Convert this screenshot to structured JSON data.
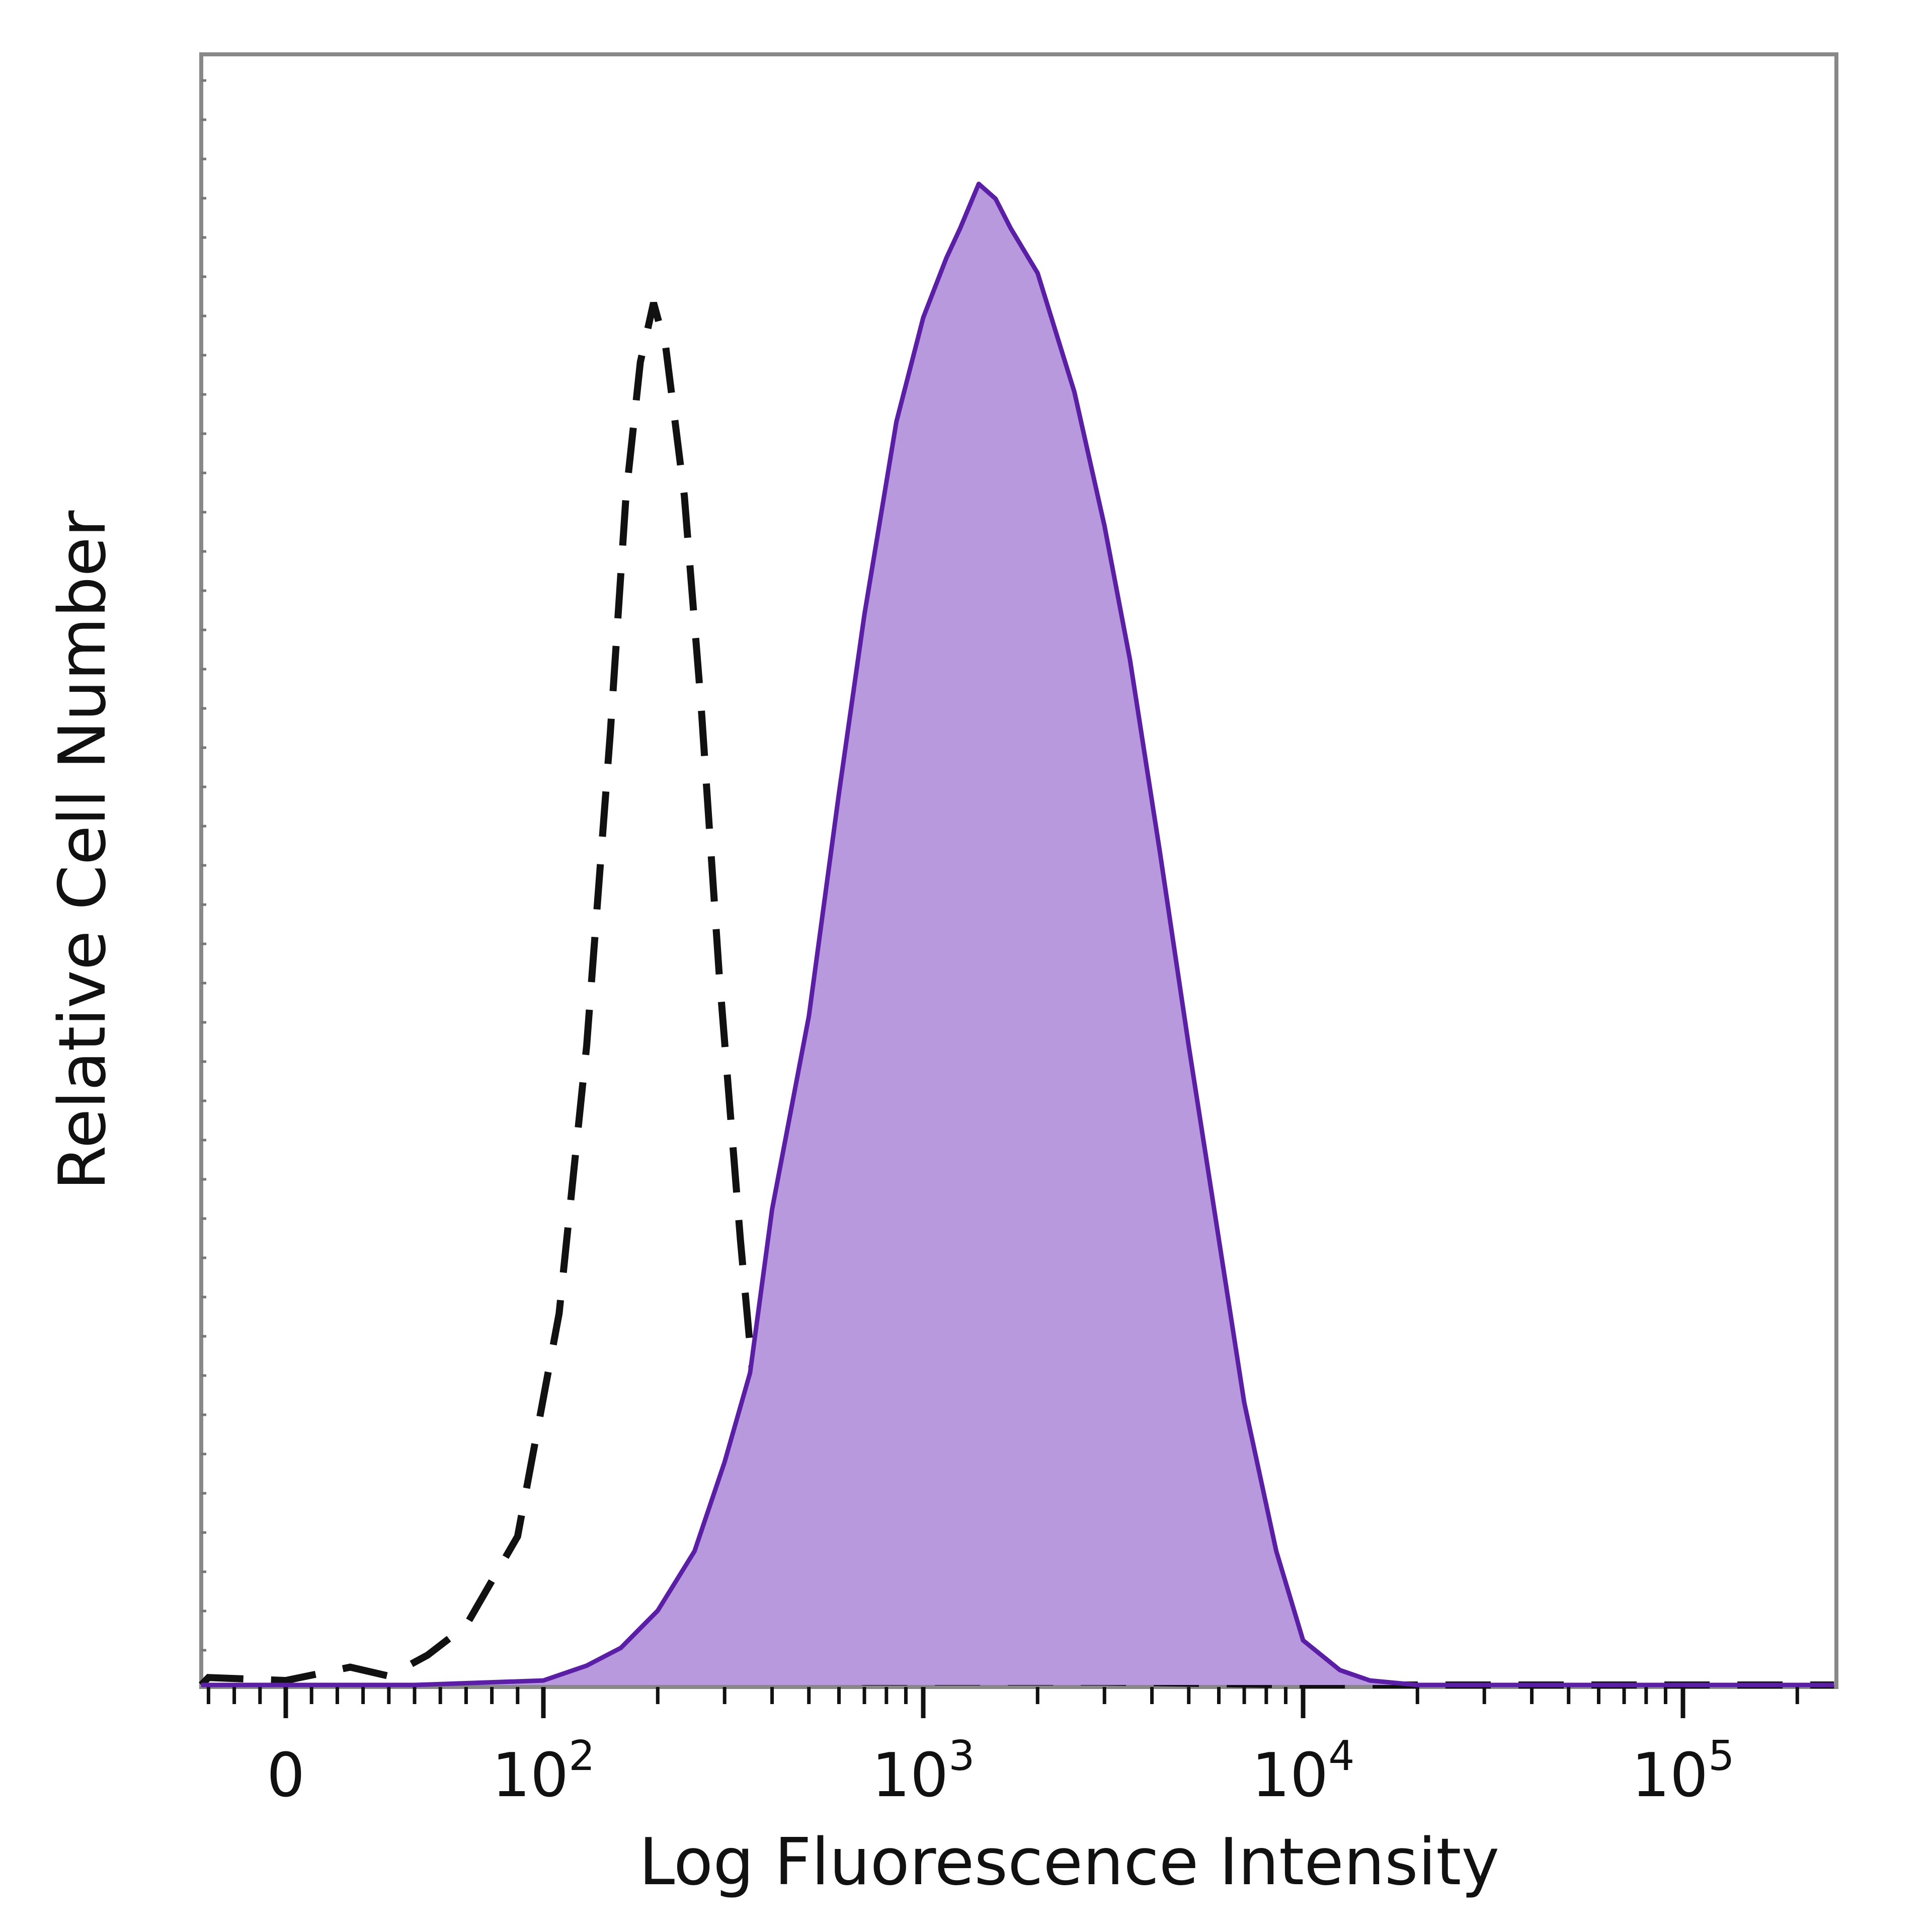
{
  "chart_data": {
    "type": "area",
    "xlabel": "Log Fluorescence Intensity",
    "ylabel": "Relative Cell Number",
    "x_scale": "biexponential",
    "x_ticks": [
      {
        "value": 0,
        "base": "0",
        "exp": ""
      },
      {
        "value": 100,
        "base": "10",
        "exp": "2"
      },
      {
        "value": 1000,
        "base": "10",
        "exp": "3"
      },
      {
        "value": 10000,
        "base": "10",
        "exp": "4"
      },
      {
        "value": 100000,
        "base": "10",
        "exp": "5"
      }
    ],
    "xlim": [
      -60,
      250000
    ],
    "ylim": [
      0,
      100
    ],
    "grid": false,
    "legend": "none",
    "series": [
      {
        "style": "dashed",
        "color": "#111111",
        "points": [
          [
            -60,
            0
          ],
          [
            -30,
            0.5
          ],
          [
            0,
            0.3
          ],
          [
            25,
            1.2
          ],
          [
            40,
            0.6
          ],
          [
            55,
            2
          ],
          [
            70,
            4
          ],
          [
            90,
            10
          ],
          [
            110,
            25
          ],
          [
            130,
            43
          ],
          [
            150,
            64
          ],
          [
            165,
            80
          ],
          [
            180,
            89
          ],
          [
            195,
            93
          ],
          [
            210,
            90
          ],
          [
            235,
            80
          ],
          [
            260,
            66
          ],
          [
            290,
            48
          ],
          [
            330,
            30
          ],
          [
            370,
            16
          ],
          [
            420,
            6
          ],
          [
            480,
            2
          ],
          [
            550,
            0.5
          ],
          [
            700,
            0.2
          ],
          [
            1000,
            0.2
          ],
          [
            3000,
            0.2
          ],
          [
            10000,
            0
          ],
          [
            250000,
            0
          ]
        ]
      },
      {
        "style": "filled",
        "color": "#5b1fa6",
        "fill": "#b899dd",
        "points": [
          [
            -60,
            0
          ],
          [
            50,
            0
          ],
          [
            100,
            0.3
          ],
          [
            130,
            1.3
          ],
          [
            160,
            2.5
          ],
          [
            200,
            5
          ],
          [
            250,
            9
          ],
          [
            300,
            15
          ],
          [
            350,
            21
          ],
          [
            400,
            32
          ],
          [
            500,
            45
          ],
          [
            600,
            60
          ],
          [
            700,
            72
          ],
          [
            850,
            85
          ],
          [
            1000,
            92
          ],
          [
            1150,
            96
          ],
          [
            1250,
            98
          ],
          [
            1400,
            101
          ],
          [
            1550,
            100
          ],
          [
            1700,
            98
          ],
          [
            2000,
            95
          ],
          [
            2500,
            87
          ],
          [
            3000,
            78
          ],
          [
            3500,
            69
          ],
          [
            4200,
            56
          ],
          [
            5000,
            43
          ],
          [
            6000,
            30
          ],
          [
            7000,
            19
          ],
          [
            8500,
            9
          ],
          [
            10000,
            3
          ],
          [
            12500,
            1
          ],
          [
            15000,
            0.3
          ],
          [
            20000,
            0
          ],
          [
            250000,
            0
          ]
        ]
      }
    ]
  }
}
